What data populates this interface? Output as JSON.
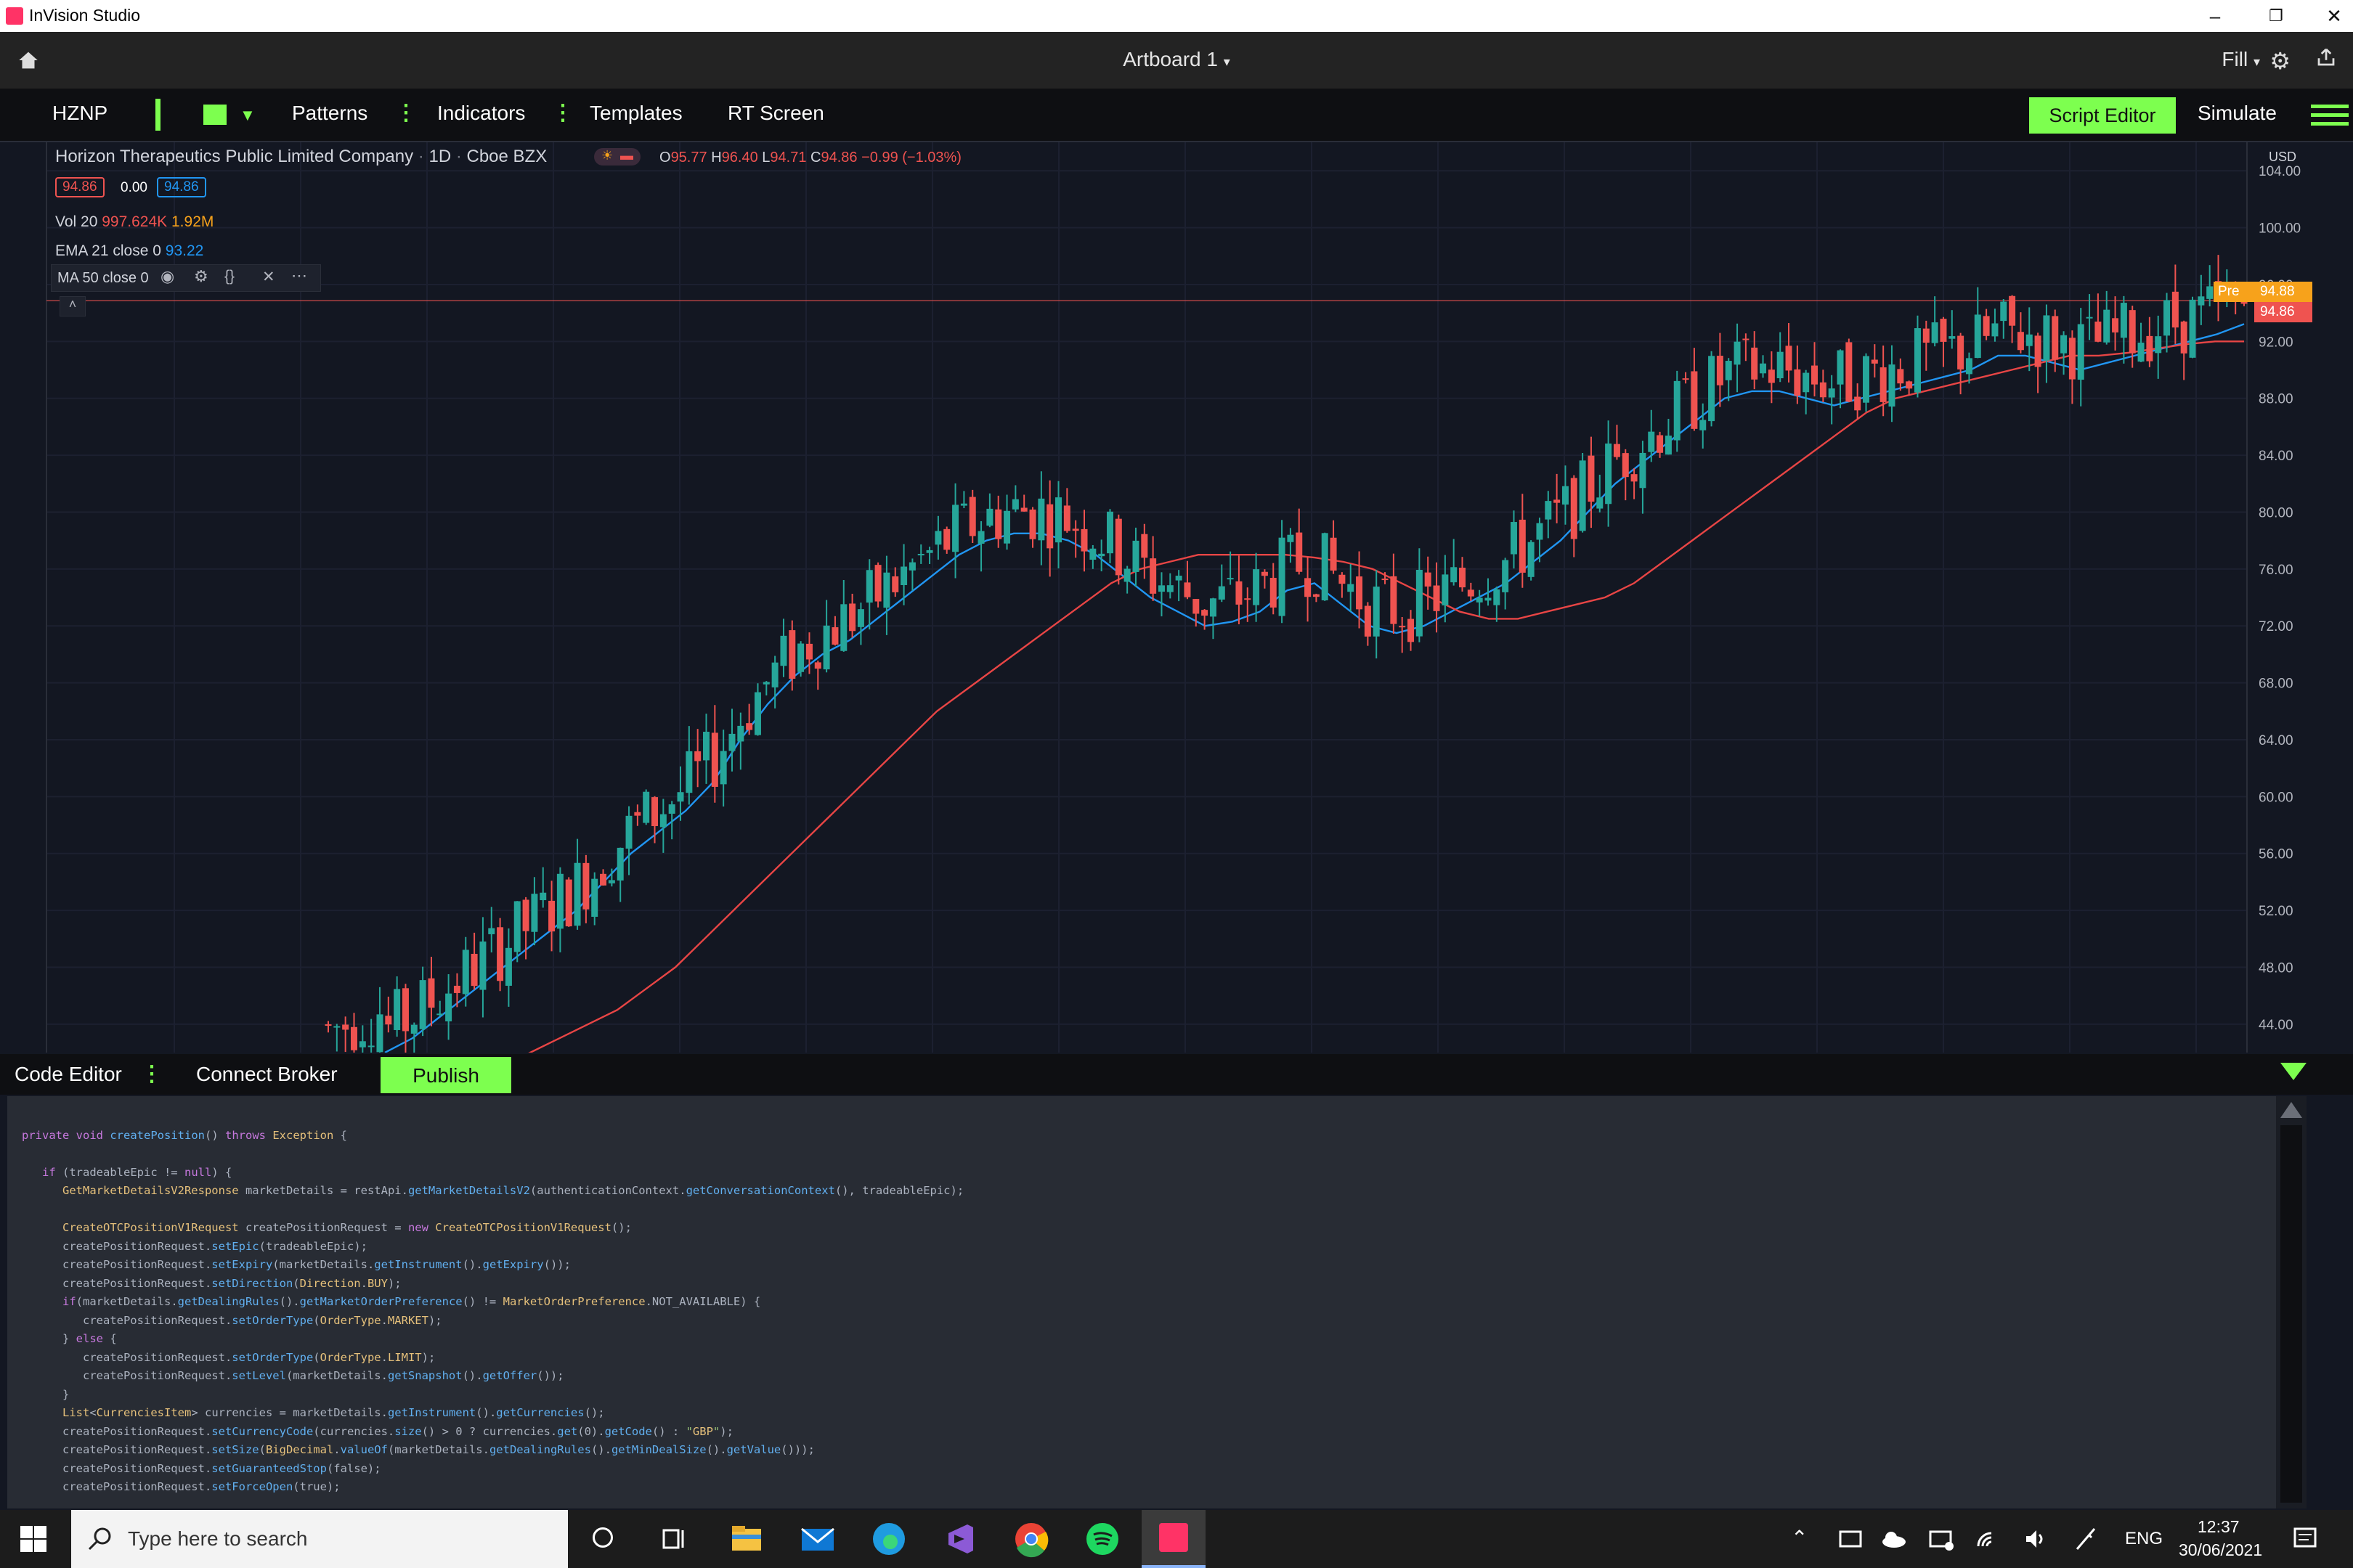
{
  "window": {
    "app_title": "InVision Studio"
  },
  "studio": {
    "artboard": "Artboard 1",
    "fill": "Fill"
  },
  "toolbar": {
    "symbol": "HZNP",
    "patterns": "Patterns",
    "indicators": "Indicators",
    "templates": "Templates",
    "rt_screen": "RT Screen",
    "script_editor": "Script Editor",
    "simulate": "Simulate"
  },
  "chart_header": {
    "company": "Horizon Therapeutics Public Limited Company",
    "interval": "1D",
    "exchange": "Cboe BZX",
    "o_label": "O",
    "o": "95.77",
    "h_label": "H",
    "h": "96.40",
    "l_label": "L",
    "l": "94.71",
    "c_label": "C",
    "c": "94.86",
    "change": "−0.99 (−1.03%)",
    "bid": "94.86",
    "spread": "0.00",
    "ask": "94.86",
    "vol_label": "Vol 20",
    "vol1": "997.624K",
    "vol2": "1.92M",
    "ema_label": "EMA 21 close 0",
    "ema_value": "93.22",
    "ma_label": "MA 50 close 0",
    "currency": "USD",
    "pre_label": "Pre",
    "pre_value": "94.88",
    "last_value": "94.86"
  },
  "chart_data": {
    "type": "line",
    "description_units": "price in USD",
    "ylim": [
      42,
      106
    ],
    "y_ticks": [
      "104.00",
      "100.00",
      "96.00",
      "92.00",
      "88.00",
      "84.00",
      "80.00",
      "76.00",
      "72.00",
      "68.00",
      "64.00",
      "60.00",
      "56.00",
      "52.00",
      "48.00",
      "44.00"
    ],
    "series": [
      {
        "name": "EMA 21 close 0",
        "color": "#2196f3",
        "values": [
          42,
          43,
          44.5,
          46,
          47.5,
          49,
          50.5,
          52,
          54,
          56,
          57.5,
          59,
          61,
          64,
          66.5,
          68.5,
          70,
          71,
          72.5,
          74,
          75.5,
          77,
          78,
          78.5,
          78.5,
          78,
          77,
          75.5,
          74,
          73,
          72,
          72.3,
          73,
          74.5,
          75,
          73.5,
          72,
          71.5,
          72,
          73,
          74,
          75,
          76.5,
          78,
          80,
          82,
          83.5,
          85,
          86.5,
          88,
          88.5,
          88.5,
          88,
          87.5,
          88,
          88.5,
          89,
          89.5,
          90,
          91,
          91,
          90.5,
          90,
          90.5,
          91,
          91.5,
          92,
          92.5,
          93.22
        ]
      },
      {
        "name": "MA 50 close 0",
        "color": "#e84545",
        "values": [
          41,
          42,
          43,
          44,
          45,
          46.5,
          48,
          50,
          52,
          54,
          56,
          58,
          60,
          62,
          64,
          66,
          67.5,
          69,
          70.5,
          72,
          73.5,
          75,
          76,
          76.5,
          77,
          77,
          77,
          77,
          76.8,
          76.5,
          76,
          75,
          74,
          73,
          72.5,
          72.5,
          73,
          73.5,
          74,
          75,
          76.5,
          78,
          79.5,
          81,
          82.5,
          84,
          85.5,
          87,
          88,
          88.5,
          89,
          89.5,
          90,
          90.5,
          91,
          91,
          91.2,
          91.5,
          91.8,
          92,
          92
        ]
      }
    ],
    "last_price": 94.86,
    "pre_price": 94.88,
    "grid": true,
    "legend": "top-left"
  },
  "panel": {
    "code_editor": "Code Editor",
    "connect_broker": "Connect Broker",
    "publish": "Publish"
  },
  "code_lines": [
    "",
    "private void createPosition() throws Exception {",
    "",
    "   if (tradeableEpic != null) {",
    "      GetMarketDetailsV2Response marketDetails = restApi.getMarketDetailsV2(authenticationContext.getConversationContext(), tradeableEpic);",
    "",
    "      CreateOTCPositionV1Request createPositionRequest = new CreateOTCPositionV1Request();",
    "      createPositionRequest.setEpic(tradeableEpic);",
    "      createPositionRequest.setExpiry(marketDetails.getInstrument().getExpiry());",
    "      createPositionRequest.setDirection(Direction.BUY);",
    "      if(marketDetails.getDealingRules().getMarketOrderPreference() != MarketOrderPreference.NOT_AVAILABLE) {",
    "         createPositionRequest.setOrderType(OrderType.MARKET);",
    "      } else {",
    "         createPositionRequest.setOrderType(OrderType.LIMIT);",
    "         createPositionRequest.setLevel(marketDetails.getSnapshot().getOffer());",
    "      }",
    "      List<CurrenciesItem> currencies = marketDetails.getInstrument().getCurrencies();",
    "      createPositionRequest.setCurrencyCode(currencies.size() > 0 ? currencies.get(0).getCode() : \"GBP\");",
    "      createPositionRequest.setSize(BigDecimal.valueOf(marketDetails.getDealingRules().getMinDealSize().getValue()));",
    "      createPositionRequest.setGuaranteedStop(false);",
    "      createPositionRequest.setForceOpen(true);"
  ],
  "taskbar": {
    "search_placeholder": "Type here to search",
    "lang": "ENG",
    "time": "12:37",
    "date": "30/06/2021"
  },
  "colors": {
    "accent": "#7dff4f",
    "up": "#26a69a",
    "down": "#ef5350",
    "ema": "#2196f3",
    "ma": "#e84545"
  }
}
